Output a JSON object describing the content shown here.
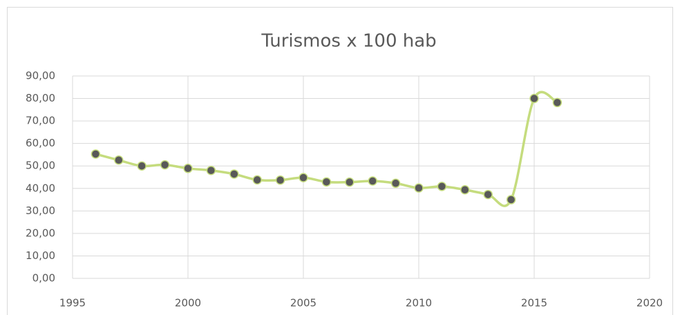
{
  "chart_data": {
    "type": "line",
    "title": "Turismos x 100 hab",
    "x": [
      1996,
      1997,
      1998,
      1999,
      2000,
      2001,
      2002,
      2003,
      2004,
      2005,
      2006,
      2007,
      2008,
      2009,
      2010,
      2011,
      2012,
      2013,
      2014,
      2015,
      2016
    ],
    "series": [
      {
        "name": "Turismos x 100 hab",
        "color": "#c5dc7e",
        "marker_color": "#595959",
        "values": [
          55.3,
          52.6,
          50.0,
          50.5,
          48.9,
          48.0,
          46.4,
          43.8,
          43.7,
          44.8,
          42.9,
          42.8,
          43.3,
          42.3,
          40.2,
          40.9,
          39.4,
          37.3,
          35.0,
          80.0,
          78.2
        ]
      }
    ],
    "smooth": true,
    "xlim": [
      1995,
      2020
    ],
    "xticks": [
      1995,
      2000,
      2005,
      2010,
      2015,
      2020
    ],
    "ylim": [
      0,
      90
    ],
    "yticks": [
      {
        "value": 0,
        "label": "0,00"
      },
      {
        "value": 10,
        "label": "10,00"
      },
      {
        "value": 20,
        "label": "20,00"
      },
      {
        "value": 30,
        "label": "30,00"
      },
      {
        "value": 40,
        "label": "40,00"
      },
      {
        "value": 50,
        "label": "50,00"
      },
      {
        "value": 60,
        "label": "60,00"
      },
      {
        "value": 70,
        "label": "70,00"
      },
      {
        "value": 80,
        "label": "80,00"
      },
      {
        "value": 90,
        "label": "90,00"
      }
    ],
    "grid": true
  }
}
